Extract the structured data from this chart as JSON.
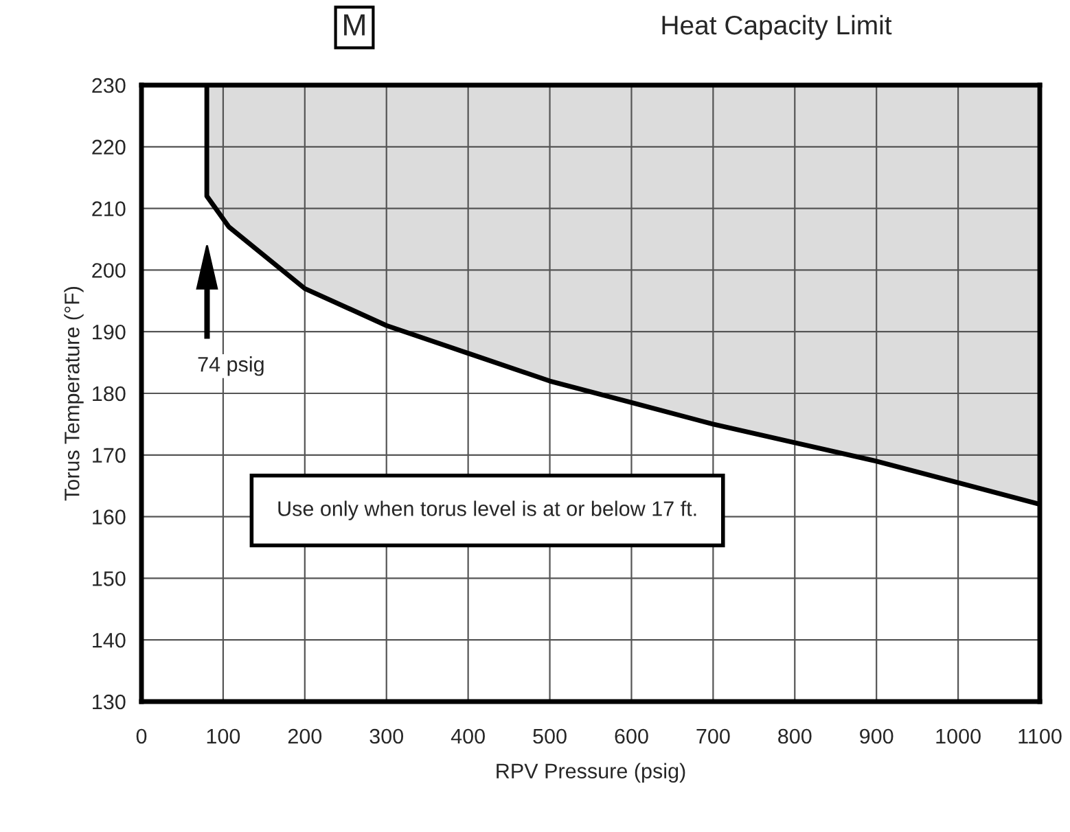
{
  "chart_data": {
    "type": "line",
    "title": "Heat Capacity Limit",
    "xlabel": "RPV Pressure (psig)",
    "ylabel": "Torus Temperature (°F)",
    "series": [
      {
        "color": "#000000",
        "x": [
          80,
          80,
          107,
          200,
          300,
          400,
          500,
          600,
          700,
          800,
          900,
          1000,
          1100
        ],
        "values": [
          230,
          212,
          207,
          197,
          191,
          186.5,
          182,
          178.5,
          175,
          172,
          169,
          165.5,
          162
        ]
      }
    ],
    "annotations": [
      "M",
      "74 psig",
      "Use only when torus level is at or below 17 ft."
    ],
    "xlim": [
      0,
      1100
    ],
    "ylim": [
      130,
      230
    ],
    "xticks": [
      0,
      100,
      200,
      300,
      400,
      500,
      600,
      700,
      800,
      900,
      1000,
      1100
    ],
    "yticks": [
      130,
      140,
      150,
      160,
      170,
      180,
      190,
      200,
      210,
      220,
      230
    ],
    "grid": true,
    "marker": "none",
    "line_style": "solid"
  }
}
